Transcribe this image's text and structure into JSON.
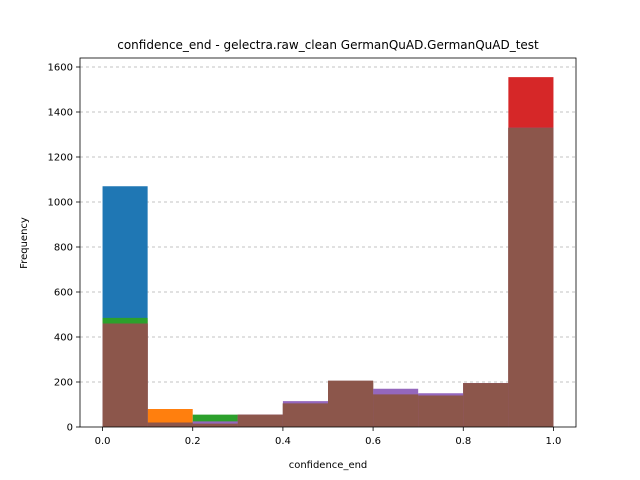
{
  "chart_data": {
    "type": "bar",
    "subtype": "overlaid-histogram",
    "title": "confidence_end - gelectra.raw_clean GermanQuAD.GermanQuAD_test",
    "xlabel": "confidence_end",
    "ylabel": "Frequency",
    "xlim": [
      -0.05,
      1.05
    ],
    "ylim": [
      0,
      1640
    ],
    "xticks": [
      0.0,
      0.2,
      0.4,
      0.6,
      0.8,
      1.0
    ],
    "xtick_labels": [
      "0.0",
      "0.2",
      "0.4",
      "0.6",
      "0.8",
      "1.0"
    ],
    "yticks": [
      0,
      200,
      400,
      600,
      800,
      1000,
      1200,
      1400,
      1600
    ],
    "ytick_labels": [
      "0",
      "200",
      "400",
      "600",
      "800",
      "1000",
      "1200",
      "1400",
      "1600"
    ],
    "grid": "y-dashed",
    "bin_edges": [
      0.0,
      0.1,
      0.2,
      0.3,
      0.4,
      0.5,
      0.6,
      0.7,
      0.8,
      0.9,
      1.0
    ],
    "series": [
      {
        "color": "#1f77b4",
        "values": [
          1070,
          20,
          20,
          55,
          105,
          205,
          145,
          140,
          195,
          1330
        ]
      },
      {
        "color": "#ff7f0e",
        "values": [
          475,
          80,
          20,
          55,
          105,
          205,
          145,
          140,
          195,
          1330
        ]
      },
      {
        "color": "#2ca02c",
        "values": [
          485,
          20,
          55,
          55,
          105,
          205,
          145,
          140,
          195,
          1330
        ]
      },
      {
        "color": "#d62728",
        "values": [
          460,
          20,
          20,
          55,
          105,
          205,
          145,
          140,
          195,
          1555
        ]
      },
      {
        "color": "#9467bd",
        "values": [
          460,
          20,
          25,
          55,
          115,
          205,
          170,
          150,
          195,
          1330
        ]
      },
      {
        "color": "#8c564b",
        "values": [
          460,
          20,
          15,
          55,
          105,
          205,
          145,
          140,
          195,
          1330
        ]
      }
    ]
  }
}
